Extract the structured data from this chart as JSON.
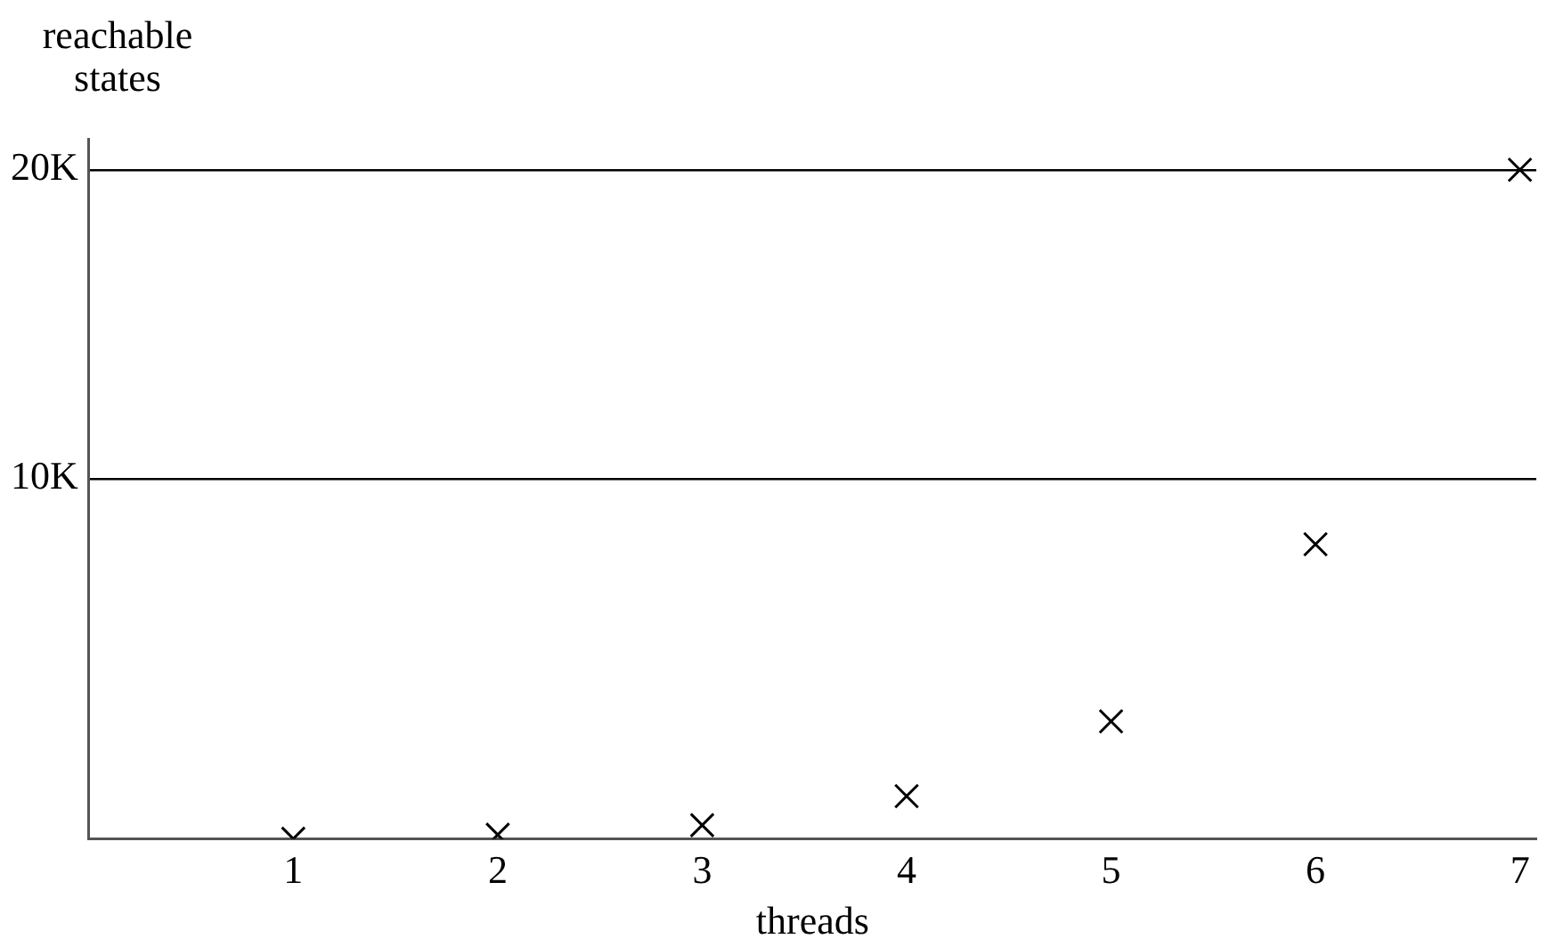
{
  "chart_data": {
    "type": "scatter",
    "xlabel": "threads",
    "ylabel": "reachable states",
    "series": [
      {
        "color": "#000000",
        "x": [
          1,
          2,
          3,
          4,
          5,
          6,
          7
        ],
        "values": [
          -1650,
          -1520,
          -1210,
          -270,
          2150,
          7880,
          20000
        ]
      }
    ],
    "xlim": [
      0,
      7.08
    ],
    "xticks": [
      1,
      2,
      3,
      4,
      5,
      6,
      7
    ],
    "ylim": [
      -1650,
      21000
    ],
    "yticks": [
      {
        "value": 10000,
        "label": "10K"
      },
      {
        "value": 20000,
        "label": "20K"
      }
    ],
    "grid": "y",
    "legend": false,
    "marker": "cross"
  }
}
